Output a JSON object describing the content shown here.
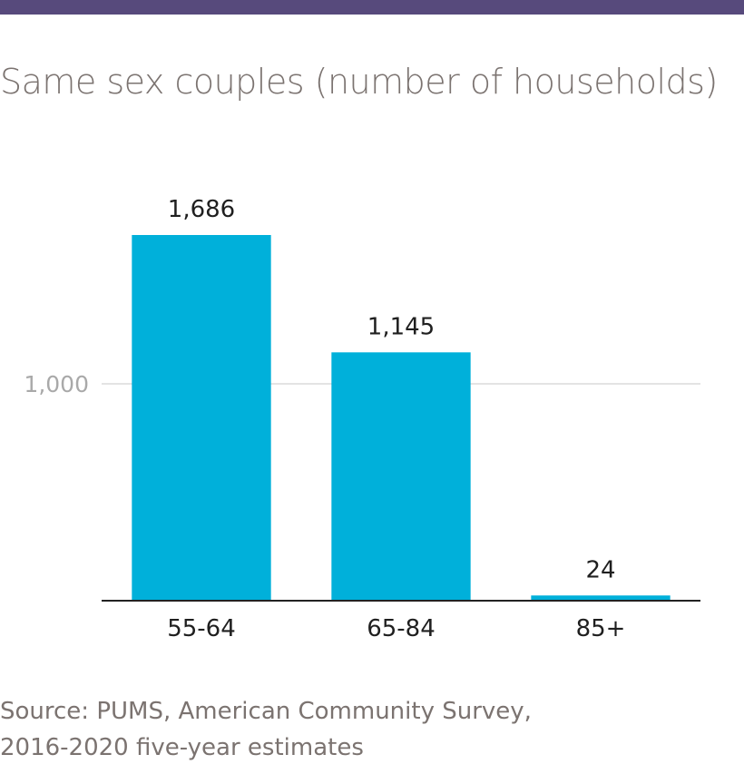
{
  "header": {
    "bar_color": "#574a7c"
  },
  "title": "Same sex couples (number of households)",
  "source": {
    "line1": "Source: PUMS, American Community Survey,",
    "line2": "2016-2020 five-year estimates"
  },
  "chart_data": {
    "type": "bar",
    "categories": [
      "55-64",
      "65-84",
      "85+"
    ],
    "values": [
      1686,
      1145,
      24
    ],
    "value_labels": [
      "1,686",
      "1,145",
      "24"
    ],
    "ylim": [
      0,
      1686
    ],
    "yticks": [
      1000
    ],
    "ytick_labels": [
      "1,000"
    ],
    "grid": true,
    "bar_color": "#00b0da",
    "xlabel": "",
    "ylabel": ""
  }
}
